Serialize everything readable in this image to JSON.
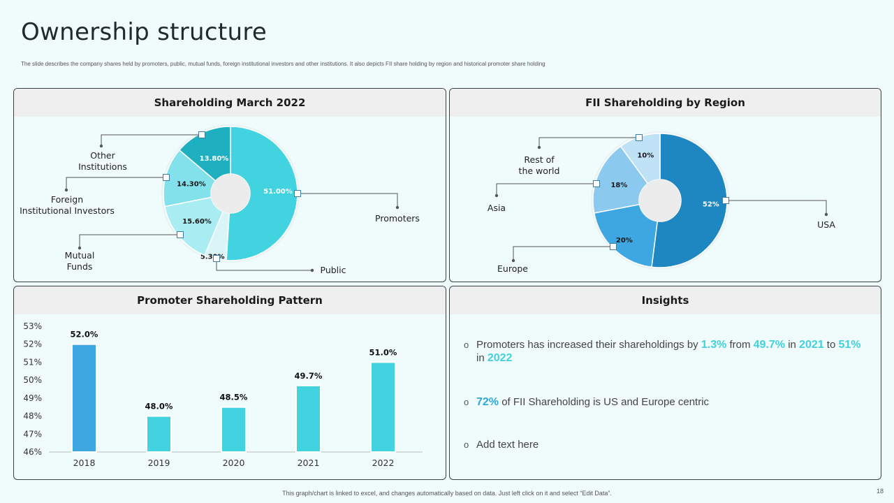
{
  "page": {
    "title": "Ownership structure",
    "subtitle": "The slide describes the company shares held by promoters, public, mutual funds, foreign institutional investors and other institutions. It also depicts FII share holding by region and historical promoter share holding",
    "footer": "This graph/chart is linked to excel, and changes automatically based on data. Just left click on it and select “Edit Data”.",
    "page_number": "18"
  },
  "panels": {
    "shareholding_title": "Shareholding March 2022",
    "fii_title": "FII Shareholding by Region",
    "promoter_title": "Promoter Shareholding Pattern",
    "insights_title": "Insights"
  },
  "chart_data": [
    {
      "type": "pie",
      "title": "Shareholding March 2022",
      "donut": true,
      "slices": [
        {
          "label": "Promoters",
          "value": 51.0,
          "value_label": "51.00%",
          "color": "#41d3e0"
        },
        {
          "label": "Public",
          "value": 5.3,
          "value_label": "5.30%",
          "color": "#d9f5f8"
        },
        {
          "label": "Mutual\nFunds",
          "value": 15.6,
          "value_label": "15.60%",
          "color": "#a9ecf2"
        },
        {
          "label": "Foreign\nInstitutional Investors",
          "value": 14.3,
          "value_label": "14.30%",
          "color": "#82e1ea"
        },
        {
          "label": "Other\nInstitutions",
          "value": 13.8,
          "value_label": "13.80%",
          "color": "#1eb0c0"
        }
      ]
    },
    {
      "type": "pie",
      "title": "FII Shareholding by Region",
      "donut": true,
      "slices": [
        {
          "label": "USA",
          "value": 52,
          "value_label": "52%",
          "color": "#1e86c1"
        },
        {
          "label": "Europe",
          "value": 20,
          "value_label": "20%",
          "color": "#3ea6e0"
        },
        {
          "label": "Asia",
          "value": 18,
          "value_label": "18%",
          "color": "#8cc9ee"
        },
        {
          "label": "Rest of\nthe world",
          "value": 10,
          "value_label": "10%",
          "color": "#bfe2f6"
        }
      ]
    },
    {
      "type": "bar",
      "title": "Promoter Shareholding Pattern",
      "categories": [
        "2018",
        "2019",
        "2020",
        "2021",
        "2022"
      ],
      "values": [
        52.0,
        48.0,
        48.5,
        49.7,
        51.0
      ],
      "value_labels": [
        "52.0%",
        "48.0%",
        "48.5%",
        "49.7%",
        "51.0%"
      ],
      "colors": [
        "#3ea6e0",
        "#41d3e0",
        "#41d3e0",
        "#41d3e0",
        "#41d3e0"
      ],
      "ylim": [
        46,
        53
      ],
      "yticks": [
        "46%",
        "47%",
        "48%",
        "49%",
        "50%",
        "51%",
        "52%",
        "53%"
      ],
      "xlabel": "",
      "ylabel": ""
    }
  ],
  "insights": [
    {
      "parts": [
        {
          "t": "Promoters has increased their shareholdings by ",
          "s": "n"
        },
        {
          "t": "1.3%",
          "s": "h"
        },
        {
          "t": " from ",
          "s": "n"
        },
        {
          "t": "49.7%",
          "s": "h"
        },
        {
          "t": " in ",
          "s": "n"
        },
        {
          "t": "2021",
          "s": "h"
        },
        {
          "t": " to ",
          "s": "n"
        },
        {
          "t": "51%",
          "s": "h"
        },
        {
          "t": " in ",
          "s": "n"
        },
        {
          "t": "2022",
          "s": "h"
        }
      ]
    },
    {
      "parts": [
        {
          "t": "72%",
          "s": "h2"
        },
        {
          "t": " of FII  Shareholding is US and Europe centric",
          "s": "n"
        }
      ]
    },
    {
      "parts": [
        {
          "t": "Add text here",
          "s": "n"
        }
      ]
    }
  ],
  "bullet_glyph": "o"
}
